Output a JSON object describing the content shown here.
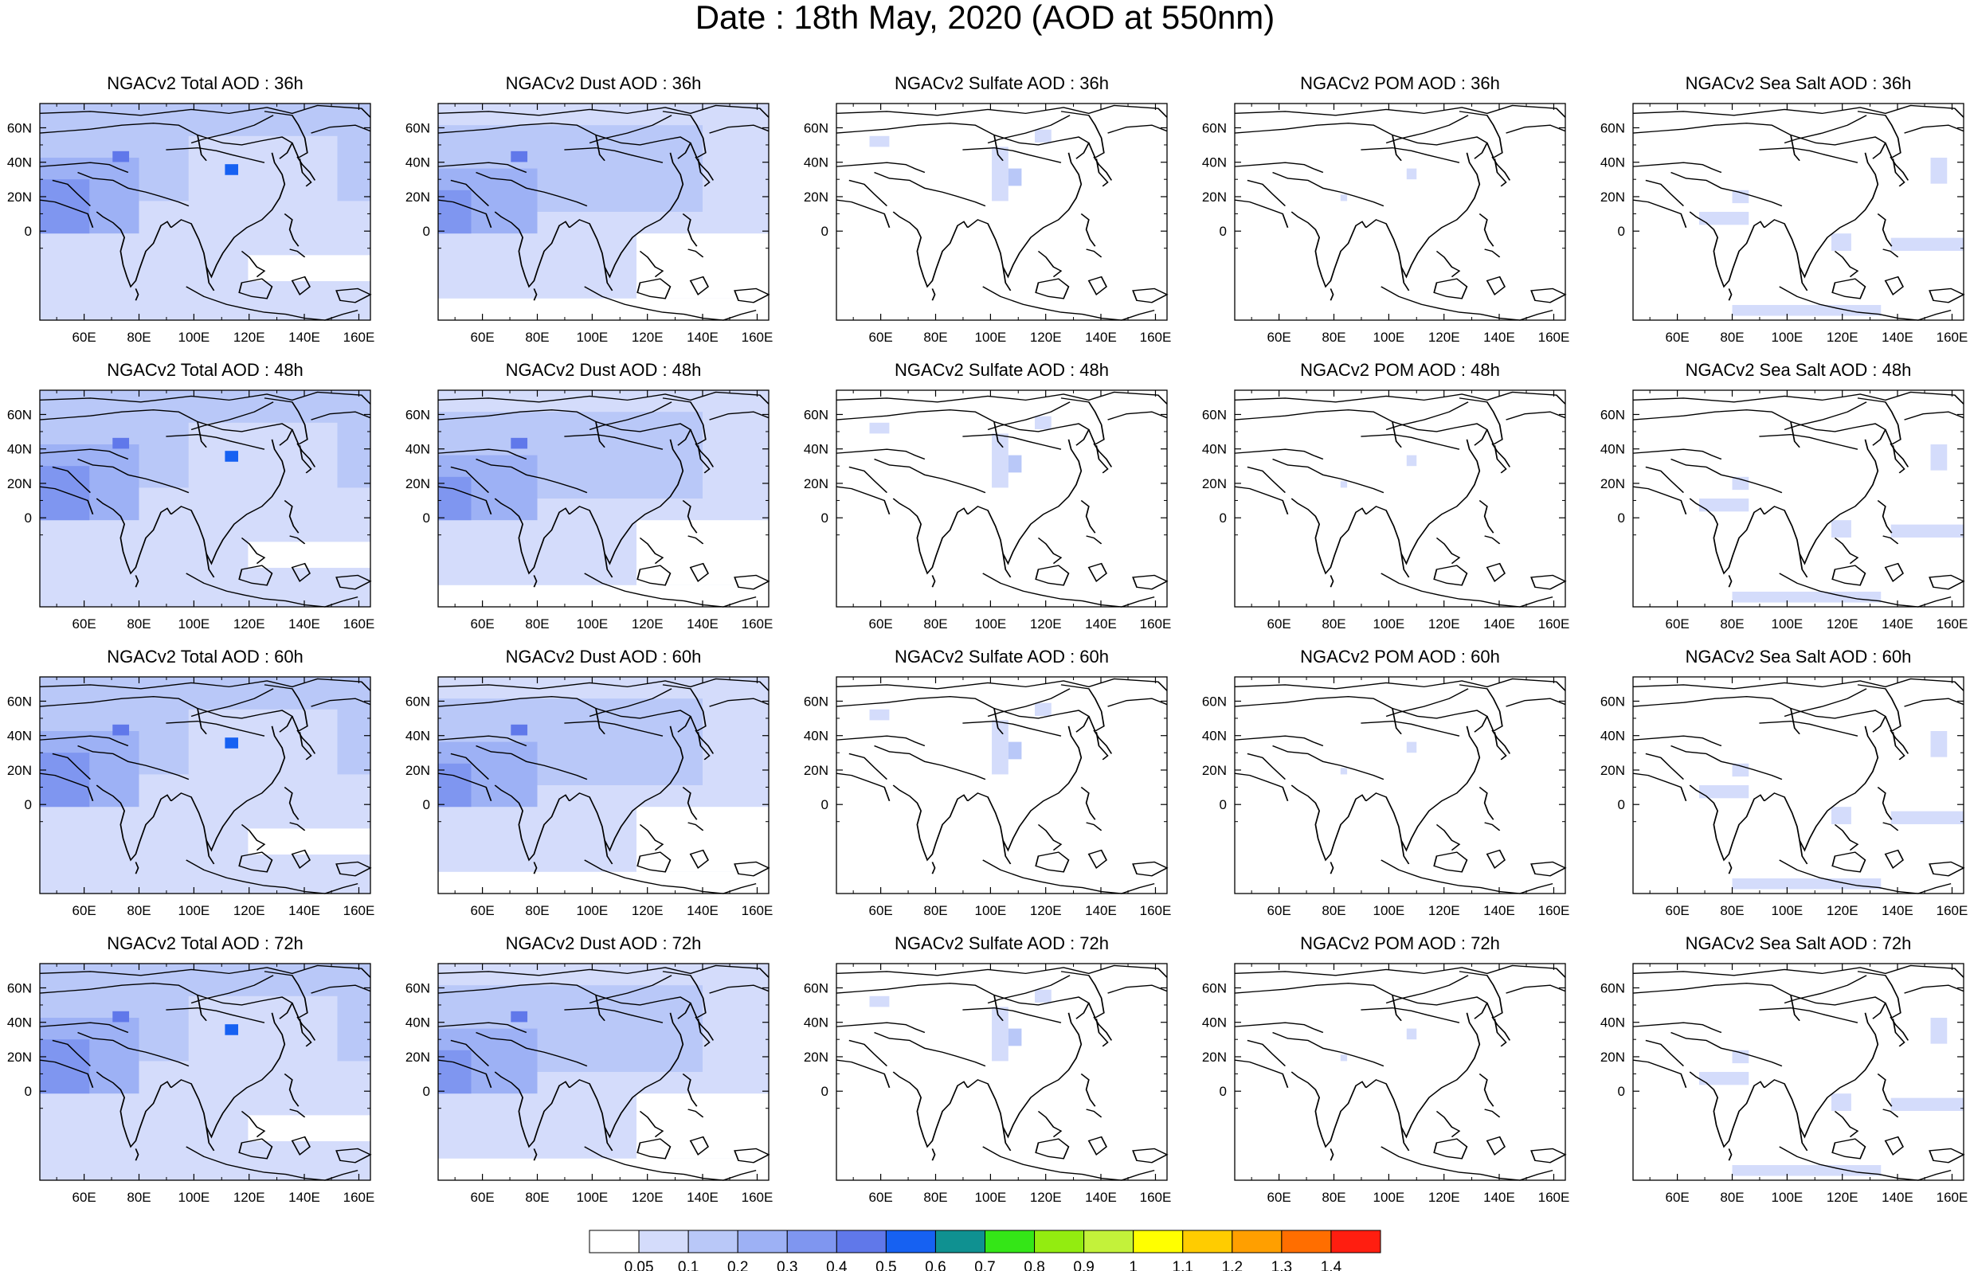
{
  "title": "Date : 18th May, 2020 (AOD at 550nm)",
  "longitude_ticks": [
    "60E",
    "80E",
    "100E",
    "120E",
    "140E",
    "160E"
  ],
  "latitude_ticks": [
    "60N",
    "40N",
    "20N",
    "0"
  ],
  "panels": [
    {
      "row": 0,
      "col": 0,
      "title": "NGACv2 Total AOD : 36h",
      "species": "total",
      "lead_h": 36
    },
    {
      "row": 0,
      "col": 1,
      "title": "NGACv2 Dust AOD : 36h",
      "species": "dust",
      "lead_h": 36
    },
    {
      "row": 0,
      "col": 2,
      "title": "NGACv2 Sulfate AOD : 36h",
      "species": "sulfate",
      "lead_h": 36
    },
    {
      "row": 0,
      "col": 3,
      "title": "NGACv2 POM AOD : 36h",
      "species": "pom",
      "lead_h": 36
    },
    {
      "row": 0,
      "col": 4,
      "title": "NGACv2 Sea Salt AOD : 36h",
      "species": "seasalt",
      "lead_h": 36
    },
    {
      "row": 1,
      "col": 0,
      "title": "NGACv2 Total AOD : 48h",
      "species": "total",
      "lead_h": 48
    },
    {
      "row": 1,
      "col": 1,
      "title": "NGACv2 Dust AOD : 48h",
      "species": "dust",
      "lead_h": 48
    },
    {
      "row": 1,
      "col": 2,
      "title": "NGACv2 Sulfate AOD : 48h",
      "species": "sulfate",
      "lead_h": 48
    },
    {
      "row": 1,
      "col": 3,
      "title": "NGACv2 POM AOD : 48h",
      "species": "pom",
      "lead_h": 48
    },
    {
      "row": 1,
      "col": 4,
      "title": "NGACv2 Sea Salt AOD : 48h",
      "species": "seasalt",
      "lead_h": 48
    },
    {
      "row": 2,
      "col": 0,
      "title": "NGACv2 Total AOD : 60h",
      "species": "total",
      "lead_h": 60
    },
    {
      "row": 2,
      "col": 1,
      "title": "NGACv2 Dust AOD : 60h",
      "species": "dust",
      "lead_h": 60
    },
    {
      "row": 2,
      "col": 2,
      "title": "NGACv2 Sulfate AOD : 60h",
      "species": "sulfate",
      "lead_h": 60
    },
    {
      "row": 2,
      "col": 3,
      "title": "NGACv2 POM AOD : 60h",
      "species": "pom",
      "lead_h": 60
    },
    {
      "row": 2,
      "col": 4,
      "title": "NGACv2 Sea Salt AOD : 60h",
      "species": "seasalt",
      "lead_h": 60
    },
    {
      "row": 3,
      "col": 0,
      "title": "NGACv2 Total AOD : 72h",
      "species": "total",
      "lead_h": 72
    },
    {
      "row": 3,
      "col": 1,
      "title": "NGACv2 Dust AOD : 72h",
      "species": "dust",
      "lead_h": 72
    },
    {
      "row": 3,
      "col": 2,
      "title": "NGACv2 Sulfate AOD : 72h",
      "species": "sulfate",
      "lead_h": 72
    },
    {
      "row": 3,
      "col": 3,
      "title": "NGACv2 POM AOD : 72h",
      "species": "pom",
      "lead_h": 72
    },
    {
      "row": 3,
      "col": 4,
      "title": "NGACv2 Sea Salt  AOD : 72h",
      "species": "seasalt",
      "lead_h": 72
    }
  ],
  "colorbar": {
    "labels": [
      "0.05",
      "0.1",
      "0.2",
      "0.3",
      "0.4",
      "0.5",
      "0.6",
      "0.7",
      "0.8",
      "0.9",
      "1",
      "1.1",
      "1.2",
      "1.3",
      "1.4"
    ],
    "colors": [
      "#ffffff",
      "#d4dcfb",
      "#b9c8f8",
      "#9db1f5",
      "#7f96f0",
      "#6078ea",
      "#1661f2",
      "#0f9191",
      "#34e617",
      "#93ec10",
      "#c3f23a",
      "#ffff00",
      "#ffcc00",
      "#ff9f00",
      "#ff6e00",
      "#ff1e10"
    ]
  }
}
